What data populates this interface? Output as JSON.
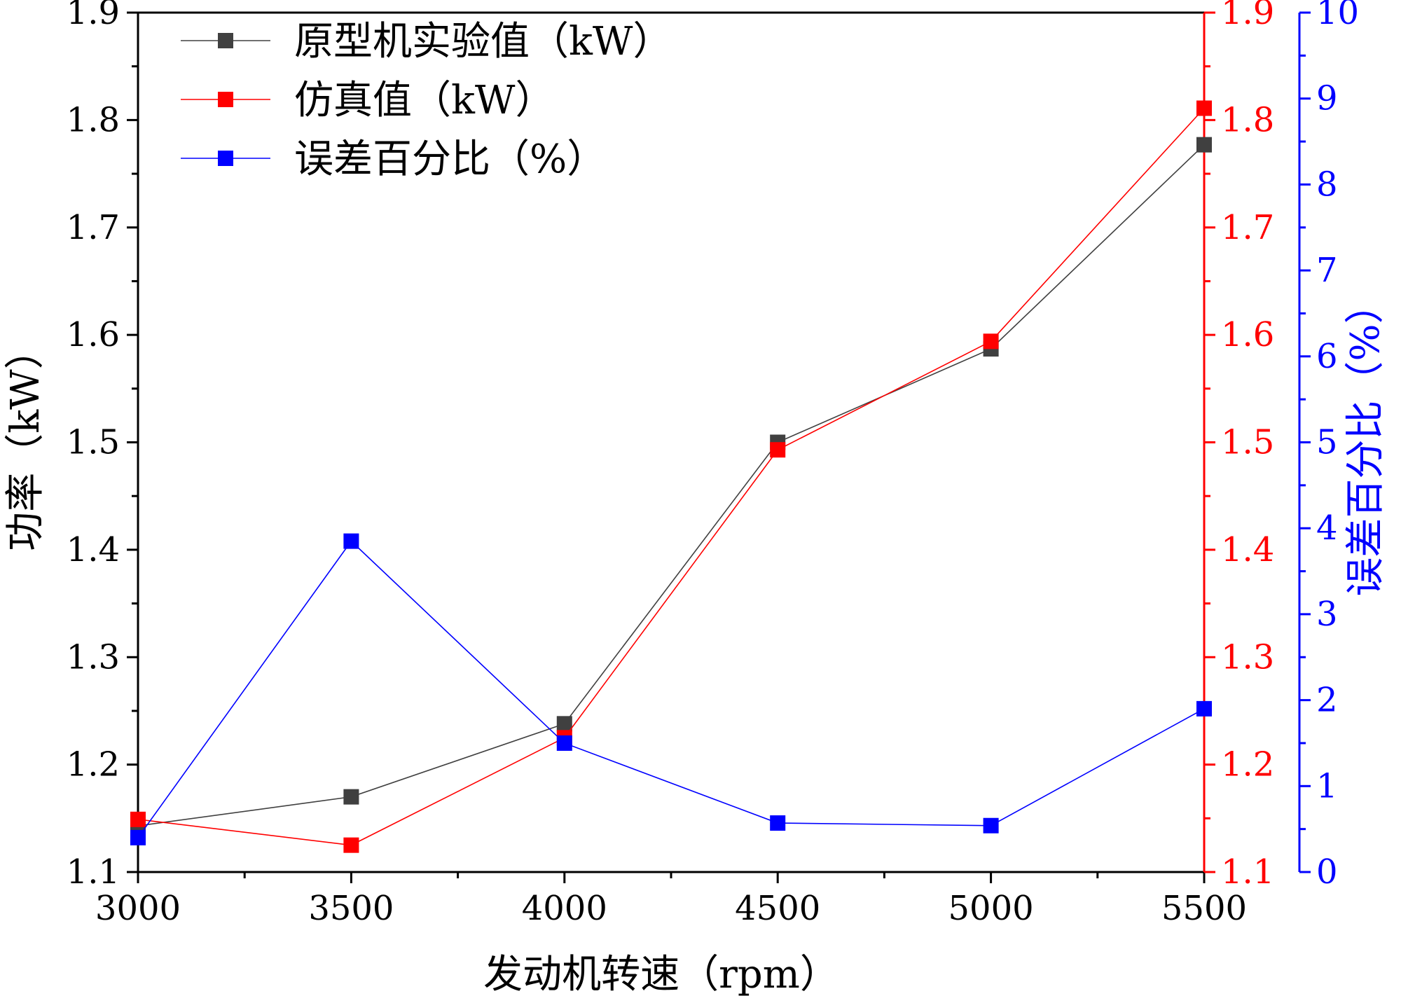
{
  "chart_data": {
    "type": "line",
    "x": [
      3000,
      3500,
      4000,
      4500,
      5000,
      5500
    ],
    "xlim": [
      3000,
      5500
    ],
    "x_ticks": [
      "3000",
      "3500",
      "4000",
      "4500",
      "5000",
      "5500"
    ],
    "xlabel": "发动机转速（rpm）",
    "ylabel_left": "功率（kW）",
    "ylim_left": [
      1.1,
      1.9
    ],
    "y_ticks_left": [
      "1.1",
      "1.2",
      "1.3",
      "1.4",
      "1.5",
      "1.6",
      "1.7",
      "1.8",
      "1.9"
    ],
    "ylim_red": [
      1.1,
      1.9
    ],
    "y_ticks_red": [
      "1.1",
      "1.2",
      "1.3",
      "1.4",
      "1.5",
      "1.6",
      "1.7",
      "1.8",
      "1.9"
    ],
    "ylabel_right": "误差百分比（%）",
    "ylim_right": [
      0,
      10
    ],
    "y_ticks_right": [
      "0",
      "1",
      "2",
      "3",
      "4",
      "5",
      "6",
      "7",
      "8",
      "9",
      "10"
    ],
    "grid": false,
    "legend_position": "top-left",
    "series": [
      {
        "name": "原型机实验值（kW）",
        "axis": "left",
        "color": "#404040",
        "values": [
          1.143,
          1.17,
          1.238,
          1.5,
          1.587,
          1.777
        ]
      },
      {
        "name": "仿真值（kW）",
        "axis": "red",
        "color": "#ff0000",
        "values": [
          1.149,
          1.125,
          1.225,
          1.493,
          1.594,
          1.811
        ]
      },
      {
        "name": "误差百分比（%）",
        "axis": "right",
        "color": "#0000ff",
        "values": [
          0.4,
          3.85,
          1.5,
          0.57,
          0.54,
          1.9
        ]
      }
    ]
  },
  "colors": {
    "left_axis": "#000000",
    "red_axis": "#ff0000",
    "blue_axis": "#0000ff"
  }
}
